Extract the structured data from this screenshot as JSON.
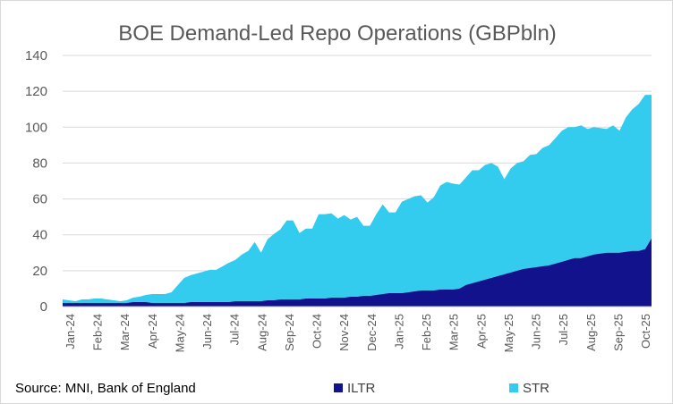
{
  "chart_data": {
    "type": "area",
    "stacked": true,
    "title": "BOE Demand-Led Repo Operations (GBPbln)",
    "xlabel": "",
    "ylabel": "",
    "ylim": [
      0,
      140
    ],
    "yticks": [
      "0",
      "20",
      "40",
      "60",
      "80",
      "100",
      "120",
      "140"
    ],
    "x_tick_labels": [
      "Jan-24",
      "Feb-24",
      "Mar-24",
      "Apr-24",
      "May-24",
      "Jun-24",
      "Jul-24",
      "Aug-24",
      "Sep-24",
      "Oct-24",
      "Nov-24",
      "Dec-24",
      "Jan-25",
      "Feb-25",
      "Mar-25",
      "Apr-25",
      "May-25",
      "Jun-25",
      "Jul-25",
      "Aug-25",
      "Sep-25",
      "Oct-25"
    ],
    "grid": "horizontal",
    "x_index_range": [
      0,
      92
    ],
    "series": [
      {
        "name": "ILTR",
        "color": "#12128C",
        "values": [
          2,
          2,
          2,
          2,
          2,
          2,
          2,
          2,
          2,
          2,
          2,
          2.5,
          2.5,
          2.5,
          2,
          2,
          2,
          2,
          2,
          2,
          2.5,
          2.5,
          2.5,
          2.5,
          2.5,
          2.5,
          2.5,
          3,
          3,
          3,
          3,
          3,
          3.5,
          3.5,
          4,
          4,
          4,
          4,
          4.5,
          4.5,
          4.5,
          4.5,
          5,
          5,
          5,
          5.5,
          5.5,
          6,
          6,
          6.5,
          7,
          7.5,
          7.5,
          7.5,
          8,
          8.5,
          9,
          9,
          9,
          9.5,
          9.5,
          9.5,
          10,
          12,
          13,
          14,
          15,
          16,
          17,
          18,
          19,
          20,
          21,
          21.5,
          22,
          22.5,
          23,
          24,
          25,
          26,
          27,
          27,
          28,
          29,
          29.5,
          30,
          30,
          30,
          30.5,
          31,
          31,
          32,
          38
        ]
      },
      {
        "name": "STR",
        "color": "#33CCEE",
        "values": [
          2,
          1.5,
          1,
          2,
          2,
          2.5,
          2.5,
          2,
          1.5,
          1,
          1.5,
          2.5,
          3,
          4,
          5,
          5,
          5,
          6,
          10,
          14,
          15,
          16,
          17,
          18,
          18,
          20,
          22,
          23,
          26,
          28,
          33,
          27,
          34,
          37,
          39,
          44,
          44,
          37,
          39,
          39,
          47,
          47,
          47,
          44,
          46,
          43,
          44.5,
          39,
          39,
          45,
          50,
          45,
          45,
          51,
          52,
          53,
          53,
          49,
          52,
          58,
          60,
          59,
          58,
          60,
          63,
          62,
          64,
          64,
          61,
          53,
          58,
          60,
          60,
          63,
          63,
          66,
          67,
          70,
          73,
          74,
          73,
          74,
          71,
          71,
          70,
          69,
          71,
          68,
          75,
          79,
          82,
          86,
          80
        ]
      }
    ],
    "legend": [
      "ILTR",
      "STR"
    ],
    "legend_position": "bottom"
  },
  "footer": {
    "source": "Source: MNI, Bank of England"
  }
}
